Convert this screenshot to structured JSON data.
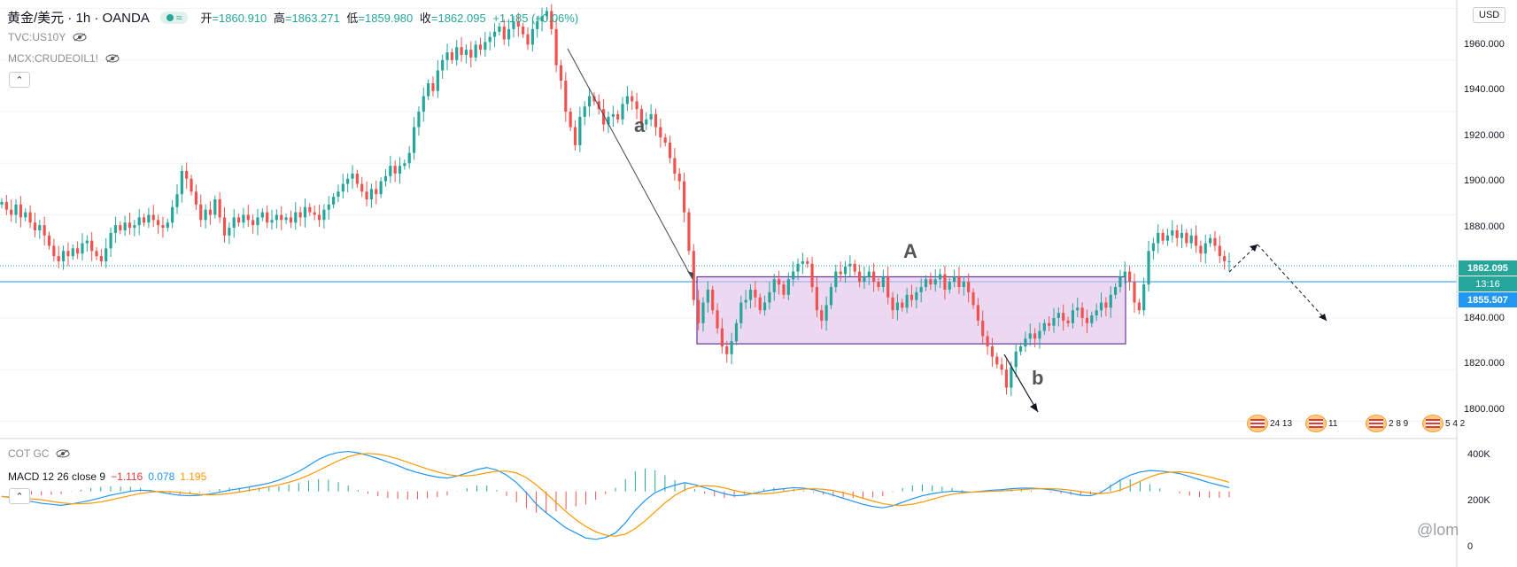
{
  "header": {
    "symbol": "黄金/美元 · 1h · OANDA",
    "ohlc": [
      {
        "k": "开",
        "v": "=1860.910"
      },
      {
        "k": "高",
        "v": "=1863.271"
      },
      {
        "k": "低",
        "v": "=1859.980"
      },
      {
        "k": "收",
        "v": "=1862.095"
      },
      {
        "k": "",
        "v": "+1.185 (+0.06%)"
      }
    ]
  },
  "overlays": [
    "TVC:US10Y",
    "MCX:CRUDEOIL1!"
  ],
  "currency": "USD",
  "price_axis": [
    "1960.000",
    "1940.000",
    "1920.000",
    "1900.000",
    "1880.000",
    "1840.000",
    "1820.000",
    "1800.000"
  ],
  "last_price_tag": {
    "value": "1862.095",
    "countdown": "13:16",
    "color": "#26a69a"
  },
  "line_tag": {
    "value": "1855.507",
    "color": "#2196f3"
  },
  "indicator_axis": [
    "400K",
    "200K",
    "0"
  ],
  "cot_label": "COT GC",
  "macd": {
    "label": "MACD 12 26 close 9",
    "macd": "−1.116",
    "signal": "0.078",
    "hist": "1.195"
  },
  "annotations": {
    "a": "a",
    "A": "A",
    "b": "b"
  },
  "events": [
    "24 13",
    "11",
    "2 8 9",
    "5 4 2"
  ],
  "watermark": "@lom",
  "colors": {
    "up": "#26a69a",
    "down": "#ef5350",
    "box_fill": "#e1bee7",
    "box_stroke": "#4a148c",
    "macd": "#2196f3",
    "signal": "#ff9800"
  },
  "chart_data": {
    "type": "candlestick",
    "ylim": [
      1795,
      1965
    ],
    "close_series": [
      1885,
      1882,
      1880,
      1884,
      1879,
      1881,
      1877,
      1874,
      1876,
      1872,
      1868,
      1864,
      1862,
      1866,
      1864,
      1867,
      1865,
      1869,
      1870,
      1866,
      1864,
      1862,
      1867,
      1873,
      1876,
      1874,
      1877,
      1875,
      1876,
      1879,
      1877,
      1880,
      1878,
      1876,
      1875,
      1877,
      1883,
      1888,
      1897,
      1894,
      1889,
      1884,
      1878,
      1882,
      1880,
      1886,
      1879,
      1872,
      1875,
      1879,
      1877,
      1880,
      1878,
      1876,
      1879,
      1881,
      1877,
      1878,
      1880,
      1878,
      1879,
      1877,
      1881,
      1879,
      1883,
      1881,
      1880,
      1878,
      1882,
      1884,
      1887,
      1889,
      1892,
      1894,
      1896,
      1892,
      1889,
      1886,
      1890,
      1888,
      1893,
      1895,
      1899,
      1896,
      1899,
      1900,
      1904,
      1914,
      1920,
      1926,
      1931,
      1928,
      1936,
      1940,
      1943,
      1940,
      1945,
      1942,
      1944,
      1941,
      1946,
      1944,
      1947,
      1949,
      1951,
      1953,
      1948,
      1952,
      1955,
      1953,
      1950,
      1946,
      1952,
      1955,
      1957,
      1959,
      1952,
      1938,
      1932,
      1920,
      1914,
      1907,
      1918,
      1922,
      1926,
      1924,
      1921,
      1915,
      1918,
      1919,
      1917,
      1923,
      1926,
      1924,
      1921,
      1915,
      1917,
      1919,
      1914,
      1910,
      1908,
      1902,
      1896,
      1893,
      1881,
      1866,
      1847,
      1838,
      1846,
      1851,
      1843,
      1836,
      1829,
      1826,
      1831,
      1838,
      1846,
      1847,
      1851,
      1848,
      1843,
      1846,
      1850,
      1855,
      1853,
      1849,
      1855,
      1858,
      1861,
      1862,
      1861,
      1852,
      1843,
      1839,
      1845,
      1852,
      1858,
      1857,
      1860,
      1861,
      1858,
      1854,
      1856,
      1858,
      1854,
      1852,
      1856,
      1848,
      1843,
      1846,
      1844,
      1849,
      1847,
      1850,
      1852,
      1855,
      1853,
      1855,
      1857,
      1851,
      1854,
      1856,
      1852,
      1854,
      1850,
      1845,
      1839,
      1833,
      1829,
      1825,
      1822,
      1820,
      1813,
      1821,
      1827,
      1829,
      1832,
      1834,
      1832,
      1835,
      1838,
      1837,
      1840,
      1842,
      1839,
      1838,
      1843,
      1844,
      1840,
      1838,
      1841,
      1843,
      1846,
      1844,
      1849,
      1852,
      1856,
      1858,
      1854,
      1846,
      1843,
      1853,
      1866,
      1869,
      1873,
      1870,
      1872,
      1874,
      1871,
      1873,
      1869,
      1872,
      1868,
      1865,
      1869,
      1871,
      1868,
      1864,
      1862,
      1862
    ],
    "range_box": {
      "top": 1856,
      "bottom": 1830
    },
    "macd_series": [
      245,
      240,
      232,
      225,
      218,
      214,
      210,
      215,
      222,
      230,
      240,
      250,
      258,
      266,
      270,
      268,
      262,
      255,
      250,
      248,
      250,
      255,
      262,
      270,
      276,
      283,
      290,
      298,
      310,
      326,
      344,
      368,
      392,
      410,
      420,
      424,
      418,
      408,
      396,
      382,
      368,
      352,
      340,
      330,
      322,
      318,
      326,
      338,
      352,
      360,
      350,
      330,
      300,
      260,
      215,
      180,
      150,
      120,
      100,
      80,
      75,
      82,
      100,
      140,
      190,
      230,
      260,
      278,
      290,
      300,
      292,
      280,
      268,
      256,
      248,
      250,
      258,
      266,
      272,
      276,
      280,
      278,
      272,
      262,
      250,
      238,
      226,
      214,
      205,
      200,
      208,
      222,
      236,
      248,
      256,
      262,
      266,
      264,
      262,
      266,
      270,
      272,
      276,
      278,
      278,
      276,
      272,
      266,
      258,
      250,
      248,
      260,
      285,
      310,
      330,
      342,
      348,
      346,
      342,
      336,
      324,
      312,
      300,
      290,
      280
    ]
  }
}
